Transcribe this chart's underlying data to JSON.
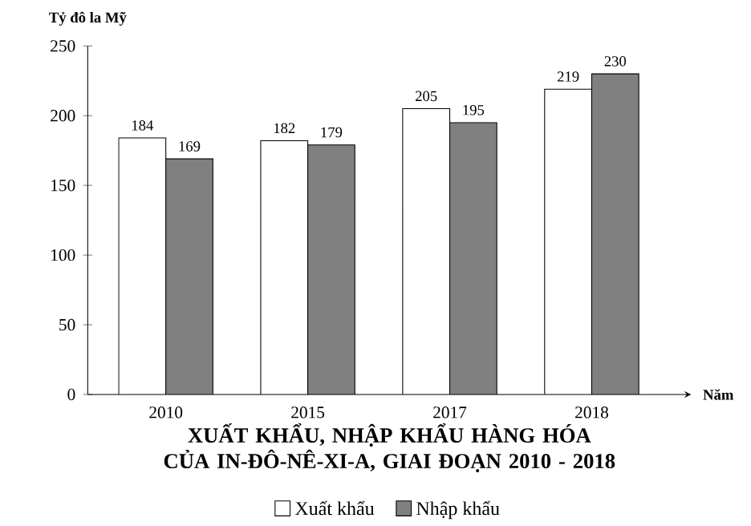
{
  "chart_data": {
    "type": "bar",
    "title": "XUẤT KHẨU, NHẬP KHẨU HÀNG HÓA CỦA IN-ĐÔ-NÊ-XI-A, GIAI ĐOẠN 2010 - 2018",
    "ylabel": "Tỷ đô la Mỹ",
    "xlabel": "Năm",
    "categories": [
      "2010",
      "2015",
      "2017",
      "2018"
    ],
    "series": [
      {
        "name": "Xuất khẩu",
        "color": "#ffffff",
        "values": [
          184,
          182,
          205,
          219
        ]
      },
      {
        "name": "Nhập khẩu",
        "color": "#808080",
        "values": [
          169,
          179,
          195,
          230
        ]
      }
    ],
    "ylim": [
      0,
      250
    ],
    "yticks": [
      0,
      50,
      100,
      150,
      200,
      250
    ],
    "data_labels": true,
    "legend": "bottom"
  }
}
